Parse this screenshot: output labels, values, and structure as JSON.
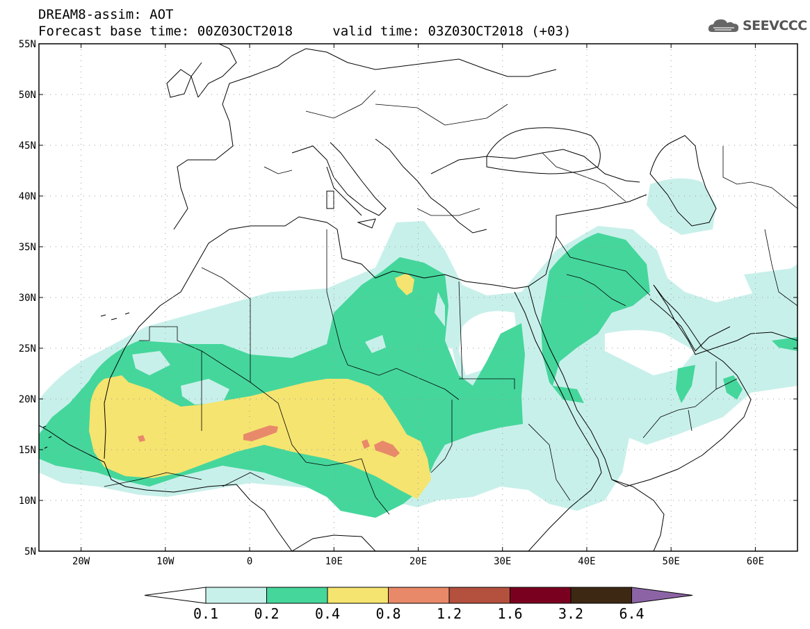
{
  "header": {
    "title": "DREAM8-assim: AOT",
    "base_time_label": "Forecast base time: 00Z03OCT2018",
    "valid_time_label": "valid time: 03Z03OCT2018 (+03)",
    "logo_text": "SEEVCCC"
  },
  "map": {
    "variable": "AOT",
    "region": {
      "lon_min": -25,
      "lon_max": 65,
      "lat_min": 5,
      "lat_max": 55
    },
    "lat_ticks": [
      "55N",
      "50N",
      "45N",
      "40N",
      "35N",
      "30N",
      "25N",
      "20N",
      "15N",
      "10N",
      "5N"
    ],
    "lon_ticks": [
      "20W",
      "10W",
      "0",
      "10E",
      "20E",
      "30E",
      "40E",
      "50E",
      "60E"
    ],
    "gridlines": "dotted"
  },
  "colorbar": {
    "levels": [
      "0.1",
      "0.2",
      "0.4",
      "0.8",
      "1.2",
      "1.6",
      "3.2",
      "6.4"
    ],
    "colors": [
      "#c8f0ea",
      "#45d69c",
      "#f5e470",
      "#e8896a",
      "#b4503e",
      "#7a0020",
      "#3d2814",
      "#8c64a6"
    ],
    "low_color": "#ffffff"
  }
}
